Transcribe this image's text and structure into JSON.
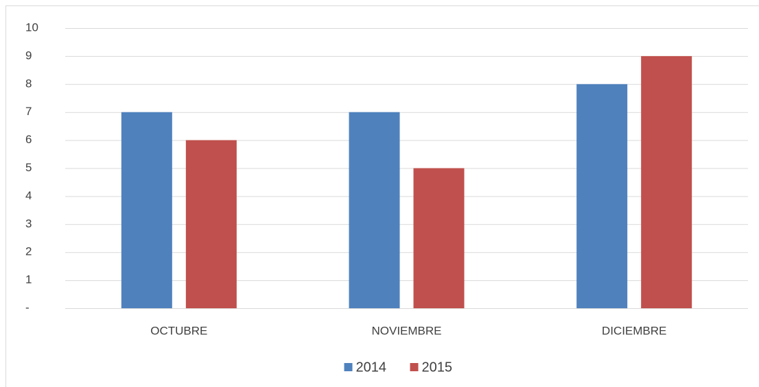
{
  "chart_data": {
    "type": "bar",
    "categories": [
      "OCTUBRE",
      "NOVIEMBRE",
      "DICIEMBRE"
    ],
    "series": [
      {
        "name": "2014",
        "color": "#4f81bd",
        "values": [
          7,
          7,
          8
        ]
      },
      {
        "name": "2015",
        "color": "#c0504d",
        "values": [
          6,
          5,
          9
        ]
      }
    ],
    "ylim": [
      0,
      10
    ],
    "yticks": [
      {
        "value": 0,
        "label": "-"
      },
      1,
      2,
      3,
      4,
      5,
      6,
      7,
      8,
      9,
      10
    ],
    "grid": true,
    "legend": "bottom"
  }
}
